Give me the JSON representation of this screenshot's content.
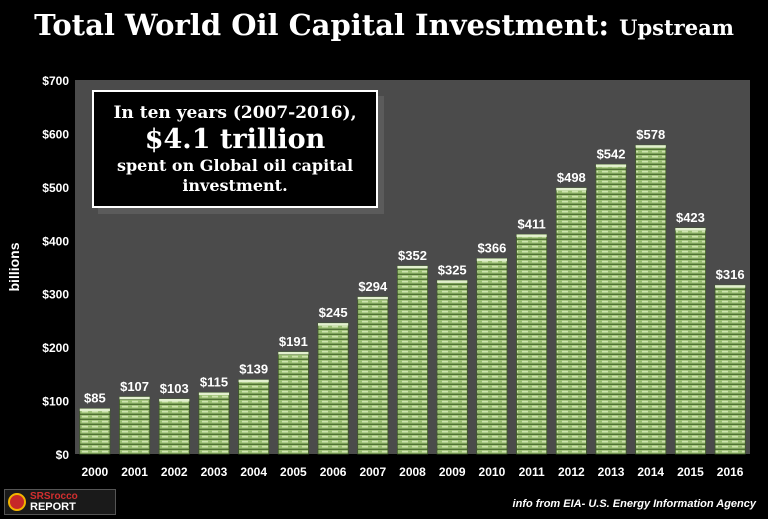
{
  "header": {
    "title_main": "Total World Oil Capital Investment: ",
    "title_sub": "Upstream"
  },
  "callout": {
    "line1": "In ten years (2007-2016),",
    "line2": "$4.1 trillion",
    "line3": "spent on Global oil capital investment."
  },
  "footer": {
    "source": "info from EIA- U.S. Energy Information Agency",
    "logo_line1": "SRSrocco",
    "logo_line2": "REPORT"
  },
  "colors": {
    "plot_bg": "#4b4b4b",
    "bar_fill": "#9bbf73",
    "bar_dark": "#4f6f33",
    "text": "#ffffff"
  },
  "chart_data": {
    "type": "bar",
    "title": "Total World Oil Capital Investment: Upstream",
    "xlabel": "",
    "ylabel": "billions",
    "categories": [
      "2000",
      "2001",
      "2002",
      "2003",
      "2004",
      "2005",
      "2006",
      "2007",
      "2008",
      "2009",
      "2010",
      "2011",
      "2012",
      "2013",
      "2014",
      "2015",
      "2016"
    ],
    "values": [
      85,
      107,
      103,
      115,
      139,
      191,
      245,
      294,
      352,
      325,
      366,
      411,
      498,
      542,
      578,
      423,
      316
    ],
    "data_labels": [
      "$85",
      "$107",
      "$103",
      "$115",
      "$139",
      "$191",
      "$245",
      "$294",
      "$352",
      "$325",
      "$366",
      "$411",
      "$498",
      "$542",
      "$578",
      "$423",
      "$316"
    ],
    "ylim": [
      0,
      700
    ],
    "yticks": [
      0,
      100,
      200,
      300,
      400,
      500,
      600,
      700
    ],
    "ytick_labels": [
      "$0",
      "$100",
      "$200",
      "$300",
      "$400",
      "$500",
      "$600",
      "$700"
    ],
    "grid": false,
    "legend": "none"
  }
}
